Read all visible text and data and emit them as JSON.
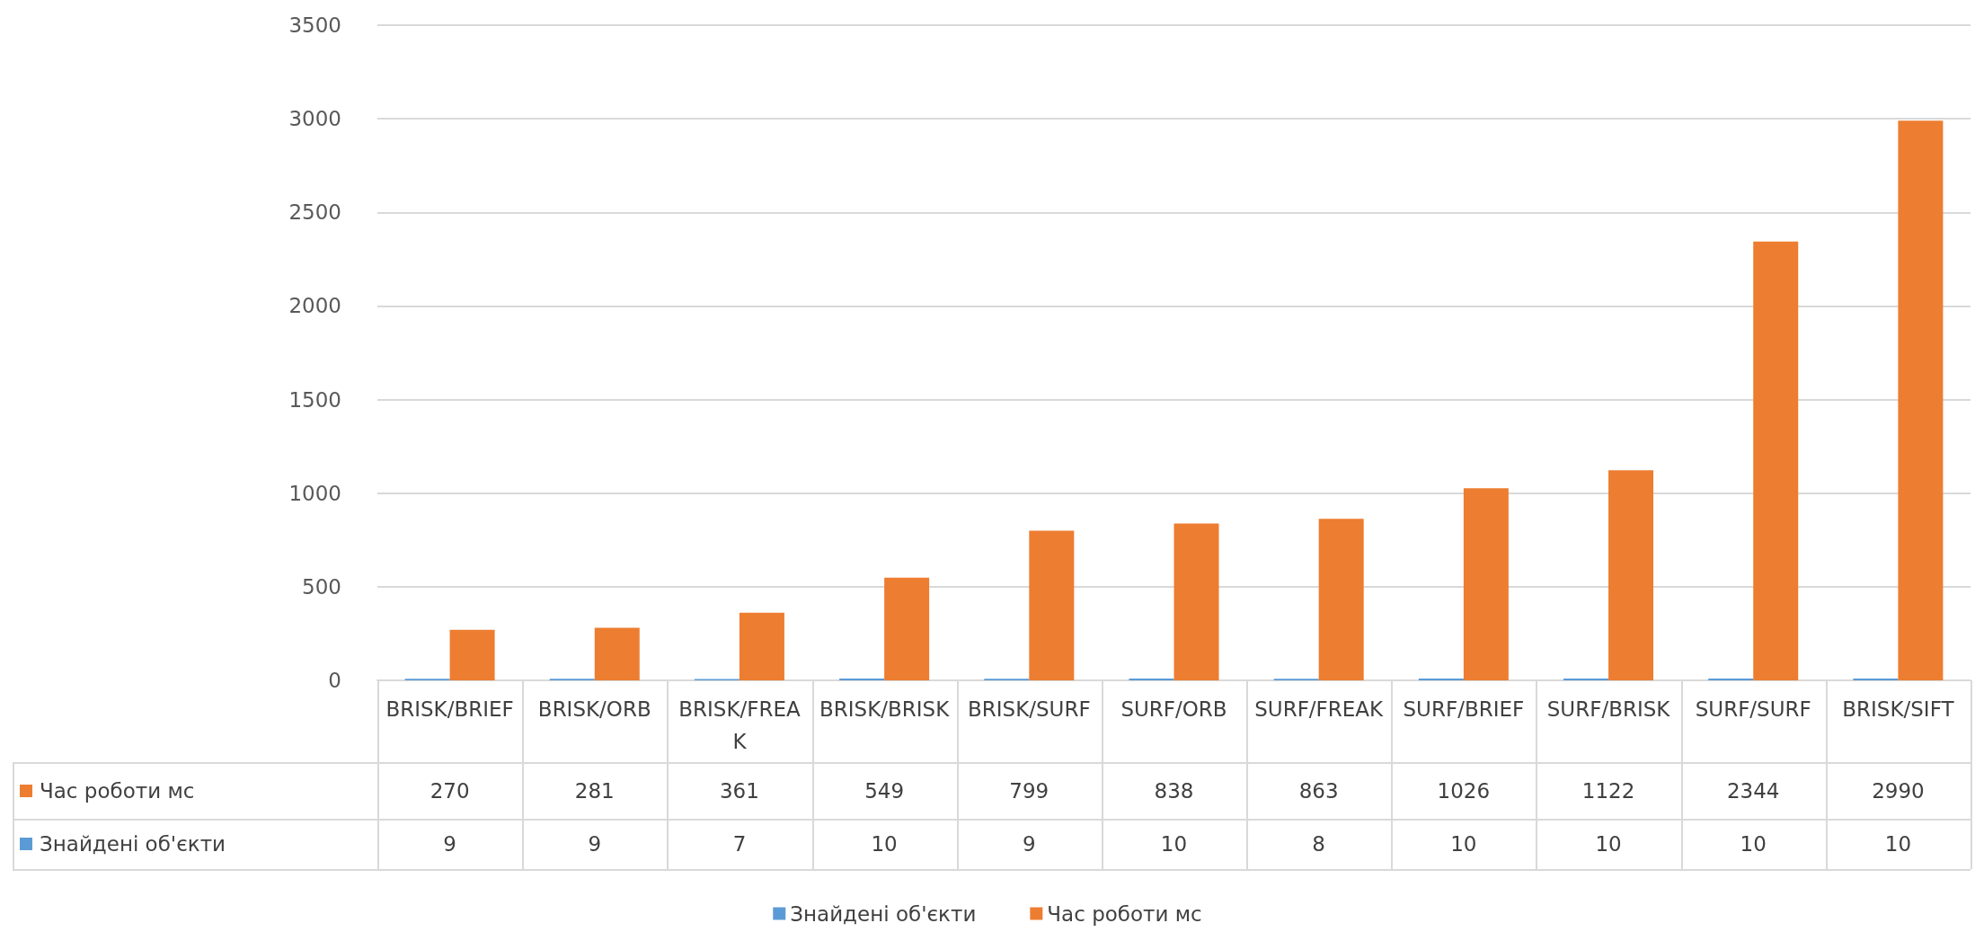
{
  "chart_data": {
    "type": "bar",
    "categories": [
      "BRISK/BRIEF",
      "BRISK/ORB",
      "BRISK/FREAK",
      "BRISK/BRISK",
      "BRISK/SURF",
      "SURF/ORB",
      "SURF/FREAK",
      "SURF/BRIEF",
      "SURF/BRISK",
      "SURF/SURF",
      "BRISK/SIFT"
    ],
    "series": [
      {
        "name": "Знайдені об'єкти",
        "color": "#5b9bd5",
        "values": [
          9,
          9,
          7,
          10,
          9,
          10,
          8,
          10,
          10,
          10,
          10
        ]
      },
      {
        "name": "Час роботи мс",
        "color": "#ed7d31",
        "values": [
          270,
          281,
          361,
          549,
          799,
          838,
          863,
          1026,
          1122,
          2344,
          2990
        ]
      }
    ],
    "ylim": [
      0,
      3500
    ],
    "yticks": [
      0,
      500,
      1000,
      1500,
      2000,
      2500,
      3000,
      3500
    ],
    "grid": "y",
    "legend": "bottom",
    "data_labels": true
  }
}
